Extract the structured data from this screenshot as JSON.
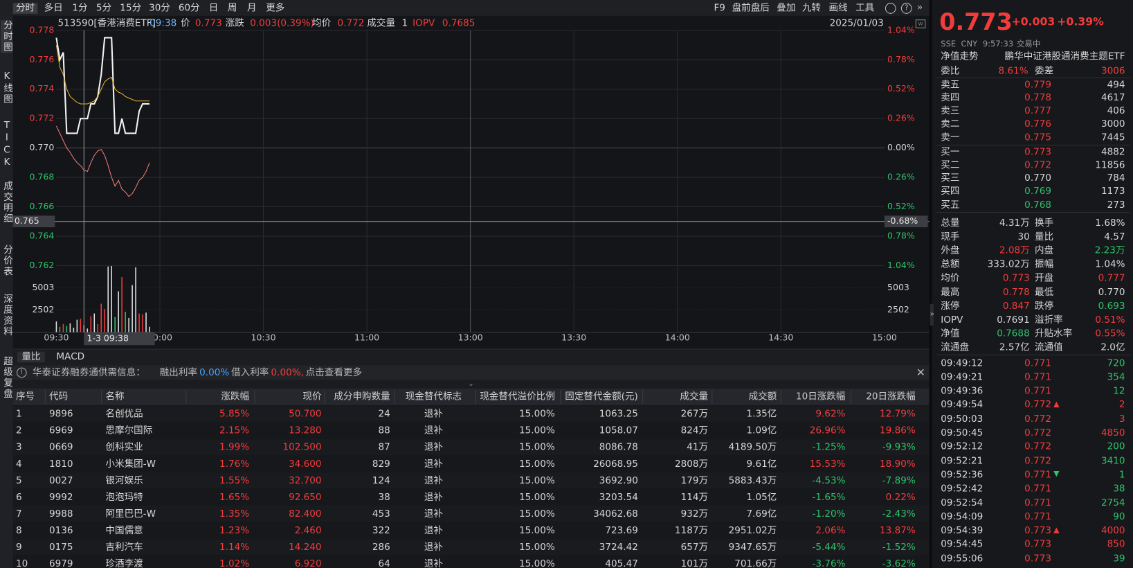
{
  "toolbar": {
    "periods": [
      "分时",
      "多日",
      "1分",
      "5分",
      "15分",
      "30分",
      "60分",
      "日",
      "周",
      "月",
      "更多"
    ],
    "tools": [
      "F9",
      "盘前盘后",
      "叠加",
      "九转",
      "画线",
      "工具"
    ]
  },
  "side_tabs": [
    "分时图",
    "K线图",
    "TICK",
    "成交明细",
    "分价表",
    "深度资料",
    "超级复盘"
  ],
  "info": {
    "code": "513590[香港消费ETF]",
    "time": "09:38",
    "price_label": "价",
    "price": "0.773",
    "change_label": "涨跌",
    "change": "0.003(0.39%)",
    "avg_label": "均价",
    "avg": "0.772",
    "volume_label": "成交量",
    "volume": "1",
    "iopv_label": "IOPV",
    "iopv": "0.7685",
    "date": "2025/01/03"
  },
  "chart_data": {
    "type": "line",
    "xlim": [
      0,
      240
    ],
    "xticks": [
      {
        "value": 0,
        "label": "09:30"
      },
      {
        "value": 30,
        "label": "10:00"
      },
      {
        "value": 60,
        "label": "10:30"
      },
      {
        "value": 90,
        "label": "11:00"
      },
      {
        "value": 120,
        "label": "13:00"
      },
      {
        "value": 150,
        "label": "13:30"
      },
      {
        "value": 180,
        "label": "14:00"
      },
      {
        "value": 210,
        "label": "14:30"
      },
      {
        "value": 240,
        "label": "15:00"
      }
    ],
    "ylim": [
      0.762,
      0.778
    ],
    "yticks": [
      0.778,
      0.776,
      0.774,
      0.772,
      {
        "value": 0.77,
        "label": "0.770"
      },
      0.768,
      0.766,
      0.764,
      0.762
    ],
    "y2lim": [
      -1.04,
      1.04
    ],
    "y2ticks": [
      {
        "value": 1.04,
        "label": "1.04%"
      },
      {
        "value": 0.78,
        "label": "0.78%"
      },
      {
        "value": 0.52,
        "label": "0.52%"
      },
      {
        "value": 0.26,
        "label": "0.26%"
      },
      {
        "value": 0,
        "label": "0.00%"
      },
      {
        "value": -0.26,
        "label": "0.26%"
      },
      {
        "value": -0.52,
        "label": "0.52%"
      },
      {
        "value": -0.78,
        "label": "0.78%"
      },
      {
        "value": -1.04,
        "label": "1.04%"
      }
    ],
    "x": [
      0,
      1,
      2,
      3,
      4,
      5,
      6,
      7,
      8,
      9,
      10,
      11,
      12,
      13,
      14,
      15,
      16,
      17,
      18,
      19,
      20,
      21,
      22,
      23,
      24,
      25,
      26,
      27
    ],
    "series": [
      {
        "color": "#f2f2f2",
        "values": [
          0.7775,
          0.776,
          0.7765,
          0.771,
          0.771,
          0.771,
          0.771,
          0.772,
          0.772,
          0.772,
          0.773,
          0.773,
          0.7735,
          0.775,
          0.7775,
          0.7775,
          0.7775,
          0.771,
          0.771,
          0.772,
          0.771,
          0.771,
          0.771,
          0.771,
          0.7725,
          0.773,
          0.773,
          0.773
        ]
      },
      {
        "color": "#e6b13a",
        "values": [
          0.777,
          0.7755,
          0.775,
          0.774,
          0.7735,
          0.7733,
          0.7731,
          0.773,
          0.773,
          0.773,
          0.7731,
          0.7732,
          0.7735,
          0.774,
          0.7745,
          0.7747,
          0.7748,
          0.774,
          0.7738,
          0.7737,
          0.7735,
          0.7734,
          0.7733,
          0.7732,
          0.7732,
          0.7732,
          0.7732,
          0.7732
        ]
      },
      {
        "color": "#f07a7a",
        "values": [
          0.7715,
          0.771,
          0.7705,
          0.77,
          0.7697,
          0.7693,
          0.769,
          0.7688,
          0.7685,
          0.7684,
          0.769,
          0.7695,
          0.7698,
          0.7699,
          0.7695,
          0.7688,
          0.768,
          0.7674,
          0.7678,
          0.7672,
          0.767,
          0.7667,
          0.7669,
          0.7673,
          0.7678,
          0.768,
          0.7684,
          0.769
        ]
      }
    ],
    "volume": {
      "ylim": [
        0,
        7505
      ],
      "yticks": [
        5003,
        2502
      ],
      "values": [
        1200,
        600,
        900,
        700,
        1000,
        500,
        1400,
        1500,
        800,
        400,
        1800,
        2100,
        900,
        3200,
        2600,
        7400,
        7450,
        1700,
        4600,
        6200,
        2300,
        1600,
        5300,
        7300,
        2100,
        2000,
        2200,
        600
      ]
    },
    "cursor": {
      "x": 8,
      "y": 0.765,
      "x_label": "1-3 09:38",
      "y_label": "0.765",
      "y2_label": "-0.68%"
    }
  },
  "sub_tabs": [
    "量比",
    "MACD"
  ],
  "notice": {
    "source": "华泰证券融券通供需信息：",
    "lend_label": "融出利率",
    "lend_rate": "0.00%",
    "borrow_label": "借入利率",
    "borrow_rate": "0.00%,",
    "link": "点击查看更多"
  },
  "table": {
    "headers": [
      "序号",
      "代码",
      "名称",
      "涨跌幅",
      "现价",
      "成分申购数量",
      "现金替代标志",
      "现金替代溢价比例",
      "固定替代金额(元)",
      "成交量",
      "成交额",
      "10日涨跌幅",
      "20日涨跌幅"
    ],
    "rows": [
      [
        "1",
        "9896",
        "名创优品",
        "5.85%",
        "50.700",
        "24",
        "退补",
        "15.00%",
        "1063.25",
        "267万",
        "1.35亿",
        "9.62%",
        "12.79%"
      ],
      [
        "2",
        "6969",
        "思摩尔国际",
        "2.15%",
        "13.280",
        "88",
        "退补",
        "15.00%",
        "1058.07",
        "824万",
        "1.09亿",
        "26.96%",
        "19.86%"
      ],
      [
        "3",
        "0669",
        "创科实业",
        "1.99%",
        "102.500",
        "87",
        "退补",
        "15.00%",
        "8086.78",
        "41万",
        "4189.50万",
        "-1.25%",
        "-9.93%"
      ],
      [
        "4",
        "1810",
        "小米集团-W",
        "1.76%",
        "34.600",
        "829",
        "退补",
        "15.00%",
        "26068.95",
        "2808万",
        "9.61亿",
        "15.53%",
        "18.90%"
      ],
      [
        "5",
        "0027",
        "银河娱乐",
        "1.55%",
        "32.700",
        "124",
        "退补",
        "15.00%",
        "3692.90",
        "179万",
        "5883.43万",
        "-4.53%",
        "-7.89%"
      ],
      [
        "6",
        "9992",
        "泡泡玛特",
        "1.65%",
        "92.650",
        "38",
        "退补",
        "15.00%",
        "3203.54",
        "114万",
        "1.05亿",
        "-1.65%",
        "0.22%"
      ],
      [
        "7",
        "9988",
        "阿里巴巴-W",
        "1.35%",
        "82.400",
        "453",
        "退补",
        "15.00%",
        "34062.68",
        "932万",
        "7.69亿",
        "-1.20%",
        "-2.43%"
      ],
      [
        "8",
        "0136",
        "中国儒意",
        "1.23%",
        "2.460",
        "322",
        "退补",
        "15.00%",
        "723.69",
        "1187万",
        "2951.02万",
        "2.06%",
        "13.87%"
      ],
      [
        "9",
        "0175",
        "吉利汽车",
        "1.14%",
        "14.240",
        "286",
        "退补",
        "15.00%",
        "3724.42",
        "657万",
        "9347.65万",
        "-5.44%",
        "-1.52%"
      ],
      [
        "10",
        "6979",
        "珍酒李渡",
        "1.02%",
        "6.920",
        "64",
        "退补",
        "15.00%",
        "405.47",
        "101万",
        "701.66万",
        "-3.76%",
        "-3.62%"
      ]
    ]
  },
  "quote": {
    "price": "0.773",
    "change": "+0.003",
    "change_pct": "+0.39%",
    "exchange": "SSE",
    "currency": "CNY",
    "time": "9:57:33",
    "status": "交易中",
    "nav_trend": "净值走势",
    "fund_name": "鹏华中证港股通消费主题ETF",
    "ratio": {
      "label": "委比",
      "value": "8.61%",
      "diff_label": "委差",
      "diff": "3006"
    },
    "book": [
      {
        "label": "卖五",
        "price": "0.779",
        "volume": "494",
        "color": "red"
      },
      {
        "label": "卖四",
        "price": "0.778",
        "volume": "4617",
        "color": "red"
      },
      {
        "label": "卖三",
        "price": "0.777",
        "volume": "406",
        "color": "red"
      },
      {
        "label": "卖二",
        "price": "0.776",
        "volume": "3000",
        "color": "red"
      },
      {
        "label": "卖一",
        "price": "0.775",
        "volume": "7445",
        "color": "red"
      },
      {
        "label": "买一",
        "price": "0.773",
        "volume": "4882",
        "color": "red"
      },
      {
        "label": "买二",
        "price": "0.772",
        "volume": "11856",
        "color": "red"
      },
      {
        "label": "买三",
        "price": "0.770",
        "volume": "784",
        "color": "white"
      },
      {
        "label": "买四",
        "price": "0.769",
        "volume": "1173",
        "color": "green"
      },
      {
        "label": "买五",
        "price": "0.768",
        "volume": "273",
        "color": "green"
      }
    ],
    "stats": [
      [
        {
          "label": "总量",
          "value": "4.31万",
          "color": "white"
        },
        {
          "label": "换手",
          "value": "1.68%",
          "color": "white"
        }
      ],
      [
        {
          "label": "现手",
          "value": "30",
          "color": "white"
        },
        {
          "label": "量比",
          "value": "4.57",
          "color": "white"
        }
      ],
      [
        {
          "label": "外盘",
          "value": "2.08万",
          "color": "red"
        },
        {
          "label": "内盘",
          "value": "2.23万",
          "color": "green"
        }
      ],
      [
        {
          "label": "总额",
          "value": "333.02万",
          "color": "white"
        },
        {
          "label": "振幅",
          "value": "1.04%",
          "color": "white"
        }
      ],
      [
        {
          "label": "均价",
          "value": "0.773",
          "color": "red"
        },
        {
          "label": "开盘",
          "value": "0.777",
          "color": "red"
        }
      ],
      [
        {
          "label": "最高",
          "value": "0.778",
          "color": "red"
        },
        {
          "label": "最低",
          "value": "0.770",
          "color": "white"
        }
      ],
      [
        {
          "label": "涨停",
          "value": "0.847",
          "color": "red"
        },
        {
          "label": "跌停",
          "value": "0.693",
          "color": "green"
        }
      ],
      [
        {
          "label": "IOPV",
          "value": "0.7691",
          "color": "white"
        },
        {
          "label": "溢折率",
          "value": "0.51%",
          "color": "red"
        }
      ],
      [
        {
          "label": "净值",
          "value": "0.7688",
          "color": "green"
        },
        {
          "label": "升贴水率",
          "value": "0.55%",
          "color": "red"
        }
      ],
      [
        {
          "label": "流通盘",
          "value": "2.57亿",
          "color": "white"
        },
        {
          "label": "流通值",
          "value": "2.0亿",
          "color": "white"
        }
      ]
    ],
    "ticks": [
      {
        "time": "09:49:12",
        "price": "0.771",
        "volume": "720",
        "color": "green"
      },
      {
        "time": "09:49:21",
        "price": "0.771",
        "volume": "354",
        "color": "green"
      },
      {
        "time": "09:49:36",
        "price": "0.771",
        "volume": "12",
        "color": "green"
      },
      {
        "time": "09:49:54",
        "price": "0.772",
        "volume": "2",
        "color": "red",
        "arrow": "up"
      },
      {
        "time": "09:50:03",
        "price": "0.772",
        "volume": "3",
        "color": "red"
      },
      {
        "time": "09:50:45",
        "price": "0.772",
        "volume": "4850",
        "color": "red"
      },
      {
        "time": "09:52:12",
        "price": "0.772",
        "volume": "200",
        "color": "green"
      },
      {
        "time": "09:52:21",
        "price": "0.772",
        "volume": "3410",
        "color": "green"
      },
      {
        "time": "09:52:36",
        "price": "0.771",
        "volume": "1",
        "color": "green",
        "arrow": "down"
      },
      {
        "time": "09:52:42",
        "price": "0.771",
        "volume": "38",
        "color": "green"
      },
      {
        "time": "09:52:54",
        "price": "0.771",
        "volume": "2754",
        "color": "green"
      },
      {
        "time": "09:54:09",
        "price": "0.771",
        "volume": "90",
        "color": "green"
      },
      {
        "time": "09:54:39",
        "price": "0.773",
        "volume": "4000",
        "color": "red",
        "arrow": "up"
      },
      {
        "time": "09:54:45",
        "price": "0.773",
        "volume": "850",
        "color": "red"
      },
      {
        "time": "09:55:06",
        "price": "0.773",
        "volume": "39",
        "color": "green"
      }
    ]
  }
}
